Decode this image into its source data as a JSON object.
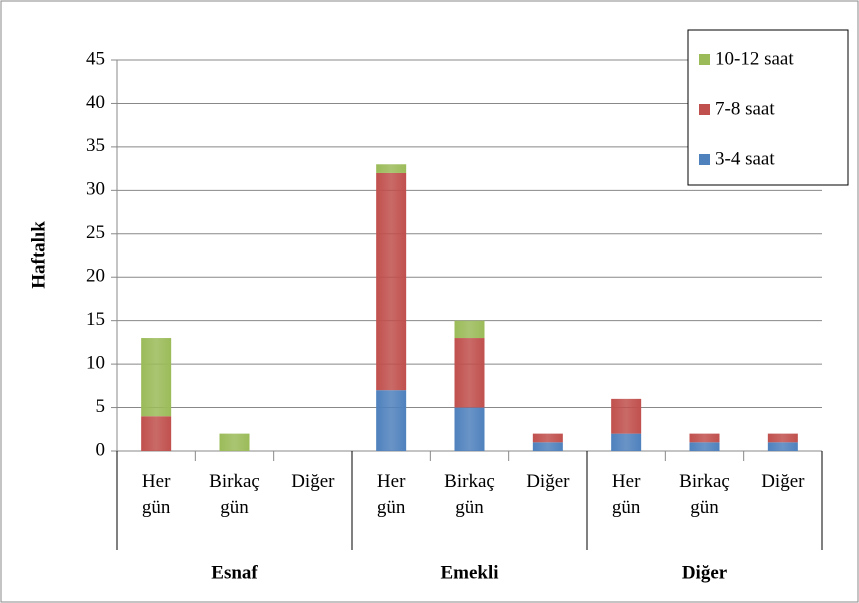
{
  "chart_data": {
    "type": "stacked_bar",
    "ylabel": "Haftalık",
    "categories": [
      "Her gün",
      "Birkaç gün",
      "Diğer",
      "Her gün",
      "Birkaç gün",
      "Diğer",
      "Her gün",
      "Birkaç gün",
      "Diğer"
    ],
    "groups": [
      "Esnaf",
      "Emekli",
      "Diğer"
    ],
    "series": [
      {
        "name": "3-4 saat",
        "color": "#4f81bd",
        "values": [
          0,
          0,
          0,
          7,
          5,
          1,
          2,
          1,
          1
        ]
      },
      {
        "name": "7-8 saat",
        "color": "#c0504d",
        "values": [
          4,
          0,
          0,
          25,
          8,
          1,
          4,
          1,
          1
        ]
      },
      {
        "name": "10-12 saat",
        "color": "#9bbb59",
        "values": [
          9,
          2,
          0,
          1,
          2,
          0,
          0,
          0,
          0
        ]
      }
    ],
    "ylim": [
      0,
      45
    ],
    "yticks": [
      0,
      5,
      10,
      15,
      20,
      25,
      30,
      35,
      40,
      45
    ],
    "grid": true,
    "legend": "top-right"
  }
}
